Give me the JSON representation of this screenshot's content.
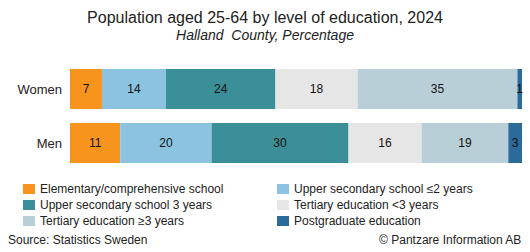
{
  "chart_data": {
    "type": "bar",
    "title": "Population aged 25-64 by level of education, 2024",
    "subtitle": "Halland  County, Percentage",
    "orientation": "horizontal",
    "stacked": true,
    "data_labels": true,
    "tick_labels": "y",
    "grid": false,
    "legend": "bottom",
    "categories": [
      "Women",
      "Men"
    ],
    "series": [
      {
        "name": "Elementary/comprehensive school",
        "color": "#f7941d",
        "values": [
          7,
          11
        ]
      },
      {
        "name": "Upper secondary school ≤2 years",
        "color": "#8cc3e0",
        "values": [
          14,
          20
        ]
      },
      {
        "name": "Upper secondary school 3 years",
        "color": "#3a8f98",
        "values": [
          24,
          30
        ]
      },
      {
        "name": "Tertiary education <3 years",
        "color": "#e6e6e6",
        "values": [
          18,
          16
        ]
      },
      {
        "name": "Tertiary education ≥3 years",
        "color": "#b9cfd8",
        "values": [
          35,
          19
        ]
      },
      {
        "name": "Postgraduate education",
        "color": "#2a6b9c",
        "values": [
          1,
          3
        ]
      }
    ],
    "annotations": [
      "Source: Statistics Sweden",
      "© Pantzare Information AB"
    ]
  }
}
